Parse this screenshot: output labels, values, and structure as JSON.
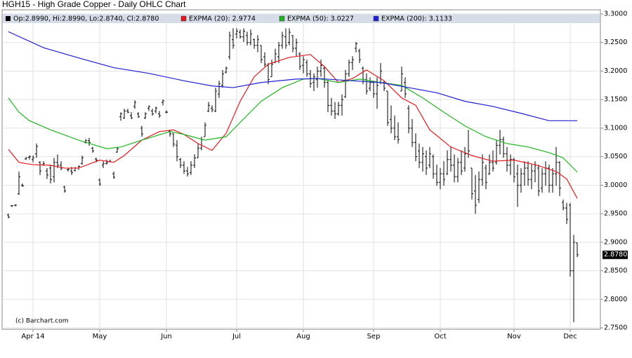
{
  "chart_data": {
    "type": "ohlc",
    "title": "HGH15 - High Grade Copper - Daily OHLC Chart",
    "credit": "(c) Barchart.com",
    "ohlc_legend": "Op:2.8990, Hi:2.8990, Lo:2.8740, Cl:2.8780",
    "ohlc_color": "#000000",
    "last_price": {
      "value": 2.878,
      "label": "2.8780"
    },
    "grid": true,
    "ylim": [
      2.75,
      3.3
    ],
    "yticks": [
      {
        "value": 2.75,
        "label": "2.7500"
      },
      {
        "value": 2.8,
        "label": "2.8000"
      },
      {
        "value": 2.85,
        "label": "2.8500"
      },
      {
        "value": 2.9,
        "label": "2.9000"
      },
      {
        "value": 2.95,
        "label": "2.9500"
      },
      {
        "value": 3.0,
        "label": "3.0000"
      },
      {
        "value": 3.05,
        "label": "3.0500"
      },
      {
        "value": 3.1,
        "label": "3.1000"
      },
      {
        "value": 3.15,
        "label": "3.1500"
      },
      {
        "value": 3.2,
        "label": "3.2000"
      },
      {
        "value": 3.25,
        "label": "3.2500"
      },
      {
        "value": 3.3,
        "label": "3.3000"
      }
    ],
    "xlim": [
      -1.8,
      168.6
    ],
    "xticks": [
      {
        "value": 7,
        "label": "Apr 14"
      },
      {
        "value": 26,
        "label": "May"
      },
      {
        "value": 45,
        "label": "Jun"
      },
      {
        "value": 65,
        "label": "Jul"
      },
      {
        "value": 84,
        "label": "Aug"
      },
      {
        "value": 104,
        "label": "Sep"
      },
      {
        "value": 123,
        "label": "Oct"
      },
      {
        "value": 144,
        "label": "Nov"
      },
      {
        "value": 160,
        "label": "Dec"
      }
    ],
    "x": [
      0,
      1,
      2,
      3,
      4,
      5,
      6,
      7,
      8,
      9,
      10,
      11,
      12,
      13,
      14,
      15,
      16,
      17,
      18,
      19,
      20,
      21,
      22,
      23,
      24,
      25,
      26,
      27,
      28,
      29,
      30,
      31,
      32,
      33,
      34,
      35,
      36,
      37,
      38,
      39,
      40,
      41,
      42,
      43,
      44,
      45,
      46,
      47,
      48,
      49,
      50,
      51,
      52,
      53,
      54,
      55,
      56,
      57,
      58,
      59,
      60,
      61,
      62,
      63,
      64,
      65,
      66,
      67,
      68,
      69,
      70,
      71,
      72,
      73,
      74,
      75,
      76,
      77,
      78,
      79,
      80,
      81,
      82,
      83,
      84,
      85,
      86,
      87,
      88,
      89,
      90,
      91,
      92,
      93,
      94,
      95,
      96,
      97,
      98,
      99,
      100,
      101,
      102,
      103,
      104,
      105,
      106,
      107,
      108,
      109,
      110,
      111,
      112,
      113,
      114,
      115,
      116,
      117,
      118,
      119,
      120,
      121,
      122,
      123,
      124,
      125,
      126,
      127,
      128,
      129,
      130,
      131,
      132,
      133,
      134,
      135,
      136,
      137,
      138,
      139,
      140,
      141,
      142,
      143,
      144,
      145,
      146,
      147,
      148,
      149,
      150,
      151,
      152,
      153,
      154,
      155,
      156,
      157,
      158,
      159,
      160,
      161,
      162
    ],
    "ohlc": [
      [
        2.948,
        2.95,
        2.942,
        2.944
      ],
      [
        2.964,
        2.965,
        2.962,
        2.964
      ],
      [
        2.965,
        2.966,
        2.963,
        2.965
      ],
      [
        2.985,
        3.024,
        2.983,
        3.015
      ],
      [
        3.0,
        3.003,
        2.997,
        2.999
      ],
      [
        3.046,
        3.049,
        3.044,
        3.048
      ],
      [
        3.049,
        3.052,
        3.045,
        3.05
      ],
      [
        3.045,
        3.052,
        3.04,
        3.048
      ],
      [
        3.055,
        3.073,
        3.048,
        3.068
      ],
      [
        3.04,
        3.042,
        3.018,
        3.025
      ],
      [
        3.036,
        3.042,
        3.034,
        3.038
      ],
      [
        3.025,
        3.03,
        3.011,
        3.018
      ],
      [
        3.03,
        3.036,
        3.003,
        3.01
      ],
      [
        3.015,
        3.048,
        3.005,
        3.04
      ],
      [
        3.04,
        3.054,
        3.03,
        3.035
      ],
      [
        3.035,
        3.042,
        3.026,
        3.03
      ],
      [
        2.997,
        2.999,
        2.987,
        2.99
      ],
      [
        3.027,
        3.03,
        3.024,
        3.028
      ],
      [
        3.025,
        3.032,
        3.018,
        3.022
      ],
      [
        3.026,
        3.032,
        3.024,
        3.03
      ],
      [
        3.03,
        3.035,
        3.027,
        3.033
      ],
      [
        3.038,
        3.052,
        3.036,
        3.048
      ],
      [
        3.075,
        3.081,
        3.073,
        3.078
      ],
      [
        3.078,
        3.083,
        3.069,
        3.075
      ],
      [
        3.065,
        3.067,
        3.057,
        3.06
      ],
      [
        3.046,
        3.048,
        3.04,
        3.044
      ],
      [
        3.009,
        3.012,
        2.999,
        3.002
      ],
      [
        3.035,
        3.042,
        3.03,
        3.038
      ],
      [
        3.038,
        3.045,
        3.036,
        3.04
      ],
      [
        3.042,
        3.045,
        3.04,
        3.041
      ],
      [
        3.02,
        3.024,
        3.011,
        3.014
      ],
      [
        3.058,
        3.067,
        3.057,
        3.064
      ],
      [
        3.12,
        3.128,
        3.113,
        3.125
      ],
      [
        3.118,
        3.134,
        3.116,
        3.13
      ],
      [
        3.13,
        3.134,
        3.126,
        3.128
      ],
      [
        3.122,
        3.128,
        3.116,
        3.118
      ],
      [
        3.138,
        3.149,
        3.134,
        3.145
      ],
      [
        3.125,
        3.128,
        3.118,
        3.12
      ],
      [
        3.1,
        3.104,
        3.085,
        3.09
      ],
      [
        3.118,
        3.128,
        3.116,
        3.125
      ],
      [
        3.135,
        3.14,
        3.13,
        3.138
      ],
      [
        3.13,
        3.134,
        3.122,
        3.125
      ],
      [
        3.13,
        3.138,
        3.126,
        3.135
      ],
      [
        3.125,
        3.13,
        3.118,
        3.122
      ],
      [
        3.145,
        3.15,
        3.14,
        3.148
      ],
      [
        3.128,
        3.131,
        3.126,
        3.128
      ],
      [
        3.095,
        3.097,
        3.085,
        3.09
      ],
      [
        3.09,
        3.091,
        3.067,
        3.072
      ],
      [
        3.07,
        3.079,
        3.042,
        3.05
      ],
      [
        3.045,
        3.048,
        3.03,
        3.035
      ],
      [
        3.035,
        3.042,
        3.02,
        3.025
      ],
      [
        3.025,
        3.032,
        3.015,
        3.02
      ],
      [
        3.022,
        3.042,
        3.018,
        3.035
      ],
      [
        3.035,
        3.054,
        3.03,
        3.048
      ],
      [
        3.048,
        3.073,
        3.048,
        3.065
      ],
      [
        3.065,
        3.085,
        3.061,
        3.08
      ],
      [
        3.085,
        3.11,
        3.085,
        3.105
      ],
      [
        3.13,
        3.146,
        3.128,
        3.14
      ],
      [
        3.135,
        3.14,
        3.128,
        3.132
      ],
      [
        3.13,
        3.171,
        3.128,
        3.165
      ],
      [
        3.16,
        3.183,
        3.153,
        3.178
      ],
      [
        3.175,
        3.202,
        3.171,
        3.195
      ],
      [
        3.198,
        3.208,
        3.196,
        3.205
      ],
      [
        3.225,
        3.269,
        3.22,
        3.262
      ],
      [
        3.255,
        3.275,
        3.239,
        3.245
      ],
      [
        3.265,
        3.275,
        3.257,
        3.27
      ],
      [
        3.268,
        3.273,
        3.257,
        3.26
      ],
      [
        3.26,
        3.275,
        3.251,
        3.27
      ],
      [
        3.262,
        3.269,
        3.245,
        3.25
      ],
      [
        3.25,
        3.273,
        3.245,
        3.265
      ],
      [
        3.255,
        3.257,
        3.239,
        3.245
      ],
      [
        3.245,
        3.263,
        3.233,
        3.255
      ],
      [
        3.245,
        3.245,
        3.214,
        3.22
      ],
      [
        3.225,
        3.233,
        3.208,
        3.212
      ],
      [
        3.21,
        3.214,
        3.177,
        3.185
      ],
      [
        3.19,
        3.22,
        3.19,
        3.212
      ],
      [
        3.215,
        3.239,
        3.214,
        3.23
      ],
      [
        3.225,
        3.251,
        3.214,
        3.245
      ],
      [
        3.245,
        3.269,
        3.239,
        3.262
      ],
      [
        3.26,
        3.275,
        3.239,
        3.245
      ],
      [
        3.25,
        3.275,
        3.245,
        3.268
      ],
      [
        3.262,
        3.263,
        3.233,
        3.24
      ],
      [
        3.24,
        3.257,
        3.226,
        3.25
      ],
      [
        3.23,
        3.233,
        3.202,
        3.208
      ],
      [
        3.21,
        3.226,
        3.196,
        3.22
      ],
      [
        3.215,
        3.22,
        3.19,
        3.195
      ],
      [
        3.195,
        3.202,
        3.171,
        3.178
      ],
      [
        3.18,
        3.196,
        3.165,
        3.19
      ],
      [
        3.185,
        3.208,
        3.171,
        3.2
      ],
      [
        3.2,
        3.22,
        3.19,
        3.21
      ],
      [
        3.205,
        3.208,
        3.171,
        3.18
      ],
      [
        3.18,
        3.183,
        3.128,
        3.14
      ],
      [
        3.14,
        3.153,
        3.122,
        3.13
      ],
      [
        3.13,
        3.146,
        3.116,
        3.125
      ],
      [
        3.125,
        3.146,
        3.122,
        3.14
      ],
      [
        3.14,
        3.159,
        3.122,
        3.15
      ],
      [
        3.155,
        3.202,
        3.153,
        3.195
      ],
      [
        3.195,
        3.22,
        3.19,
        3.215
      ],
      [
        3.215,
        3.226,
        3.202,
        3.22
      ],
      [
        3.24,
        3.251,
        3.233,
        3.248
      ],
      [
        3.235,
        3.239,
        3.214,
        3.22
      ],
      [
        3.205,
        3.208,
        3.177,
        3.185
      ],
      [
        3.185,
        3.196,
        3.159,
        3.165
      ],
      [
        3.17,
        3.189,
        3.165,
        3.18
      ],
      [
        3.18,
        3.183,
        3.153,
        3.16
      ],
      [
        3.16,
        3.189,
        3.134,
        3.175
      ],
      [
        3.18,
        3.214,
        3.177,
        3.2
      ],
      [
        3.18,
        3.183,
        3.165,
        3.17
      ],
      [
        3.165,
        3.165,
        3.104,
        3.11
      ],
      [
        3.115,
        3.14,
        3.091,
        3.1
      ],
      [
        3.1,
        3.122,
        3.079,
        3.085
      ],
      [
        3.085,
        3.11,
        3.073,
        3.08
      ],
      [
        3.165,
        3.208,
        3.165,
        3.195
      ],
      [
        3.18,
        3.189,
        3.153,
        3.16
      ],
      [
        3.135,
        3.14,
        3.091,
        3.1
      ],
      [
        3.1,
        3.116,
        3.067,
        3.075
      ],
      [
        3.075,
        3.091,
        3.042,
        3.05
      ],
      [
        3.06,
        3.073,
        3.03,
        3.04
      ],
      [
        3.04,
        3.067,
        3.024,
        3.055
      ],
      [
        3.05,
        3.061,
        3.018,
        3.03
      ],
      [
        3.035,
        3.067,
        3.03,
        3.055
      ],
      [
        3.05,
        3.054,
        3.011,
        3.02
      ],
      [
        3.02,
        3.036,
        2.999,
        3.005
      ],
      [
        3.005,
        3.03,
        2.993,
        3.02
      ],
      [
        3.02,
        3.042,
        2.999,
        3.01
      ],
      [
        3.02,
        3.061,
        3.018,
        3.045
      ],
      [
        3.045,
        3.067,
        3.024,
        3.035
      ],
      [
        3.035,
        3.054,
        3.005,
        3.015
      ],
      [
        3.015,
        3.048,
        3.005,
        3.04
      ],
      [
        3.04,
        3.061,
        3.018,
        3.025
      ],
      [
        3.03,
        3.067,
        3.024,
        3.055
      ],
      [
        3.055,
        3.097,
        3.048,
        3.06
      ],
      [
        3.03,
        3.03,
        2.975,
        2.985
      ],
      [
        2.99,
        3.018,
        2.95,
        2.965
      ],
      [
        2.975,
        3.024,
        2.969,
        3.01
      ],
      [
        3.01,
        3.054,
        2.999,
        3.04
      ],
      [
        3.03,
        3.036,
        2.993,
        3.005
      ],
      [
        3.02,
        3.054,
        3.018,
        3.04
      ],
      [
        3.04,
        3.061,
        3.024,
        3.03
      ],
      [
        3.04,
        3.079,
        3.036,
        3.07
      ],
      [
        3.07,
        3.097,
        3.054,
        3.08
      ],
      [
        3.08,
        3.085,
        3.048,
        3.055
      ],
      [
        3.055,
        3.067,
        3.024,
        3.035
      ],
      [
        3.035,
        3.054,
        3.018,
        3.045
      ],
      [
        3.045,
        3.048,
        3.005,
        3.015
      ],
      [
        3.02,
        3.036,
        2.962,
        3.0
      ],
      [
        3.0,
        3.03,
        2.987,
        3.02
      ],
      [
        3.02,
        3.042,
        2.999,
        3.03
      ],
      [
        3.03,
        3.042,
        2.999,
        3.01
      ],
      [
        3.01,
        3.036,
        2.993,
        3.025
      ],
      [
        3.025,
        3.042,
        3.005,
        3.035
      ],
      [
        3.03,
        3.036,
        2.981,
        2.99
      ],
      [
        2.995,
        3.03,
        2.987,
        3.02
      ],
      [
        3.02,
        3.042,
        2.999,
        3.03
      ],
      [
        3.03,
        3.036,
        2.987,
        3.0
      ],
      [
        3.0,
        3.03,
        2.987,
        3.02
      ],
      [
        3.02,
        3.067,
        2.999,
        3.04
      ],
      [
        3.04,
        3.042,
        2.981,
        2.995
      ],
      [
        2.97,
        2.975,
        2.956,
        2.96
      ],
      [
        2.96,
        2.969,
        2.932,
        2.94
      ],
      [
        2.965,
        2.969,
        2.84,
        2.85
      ],
      [
        2.85,
        2.913,
        2.76,
        2.9
      ],
      [
        2.899,
        2.899,
        2.874,
        2.878
      ]
    ],
    "series": [
      {
        "name": "EXPMA (20): 2.9774",
        "color": "#e31a1c",
        "x": [
          0,
          3,
          7,
          12,
          16,
          20,
          26,
          30,
          33,
          38,
          43,
          47,
          50,
          54,
          58,
          62,
          66,
          70,
          74,
          80,
          86,
          90,
          94,
          98,
          102,
          107,
          112,
          116,
          120,
          126,
          132,
          138,
          144,
          150,
          156,
          159,
          162
        ],
        "values": [
          3.063,
          3.04,
          3.036,
          3.035,
          3.03,
          3.03,
          3.044,
          3.04,
          3.052,
          3.079,
          3.094,
          3.097,
          3.089,
          3.073,
          3.061,
          3.091,
          3.147,
          3.19,
          3.212,
          3.224,
          3.229,
          3.208,
          3.18,
          3.187,
          3.202,
          3.183,
          3.153,
          3.14,
          3.097,
          3.067,
          3.052,
          3.042,
          3.044,
          3.036,
          3.024,
          3.011,
          2.977
        ]
      },
      {
        "name": "EXPMA (50): 3.0227",
        "color": "#1fb51f",
        "x": [
          0,
          3,
          6,
          12,
          20,
          28,
          32,
          38,
          46,
          50,
          56,
          62,
          66,
          72,
          78,
          84,
          88,
          94,
          100,
          106,
          112,
          118,
          124,
          130,
          136,
          142,
          148,
          154,
          158,
          162
        ],
        "values": [
          3.153,
          3.128,
          3.113,
          3.097,
          3.079,
          3.064,
          3.067,
          3.079,
          3.094,
          3.089,
          3.079,
          3.085,
          3.11,
          3.147,
          3.171,
          3.186,
          3.187,
          3.18,
          3.186,
          3.18,
          3.175,
          3.153,
          3.128,
          3.104,
          3.085,
          3.073,
          3.067,
          3.057,
          3.048,
          3.023
        ]
      },
      {
        "name": "EXPMA (200): 3.1133",
        "color": "#1f1fd6",
        "x": [
          0,
          10,
          20,
          30,
          40,
          50,
          58,
          64,
          72,
          82,
          88,
          98,
          106,
          114,
          122,
          130,
          138,
          146,
          154,
          162
        ],
        "values": [
          3.269,
          3.241,
          3.223,
          3.206,
          3.196,
          3.183,
          3.174,
          3.171,
          3.18,
          3.186,
          3.187,
          3.183,
          3.18,
          3.171,
          3.162,
          3.147,
          3.138,
          3.126,
          3.113,
          3.113
        ]
      }
    ]
  }
}
